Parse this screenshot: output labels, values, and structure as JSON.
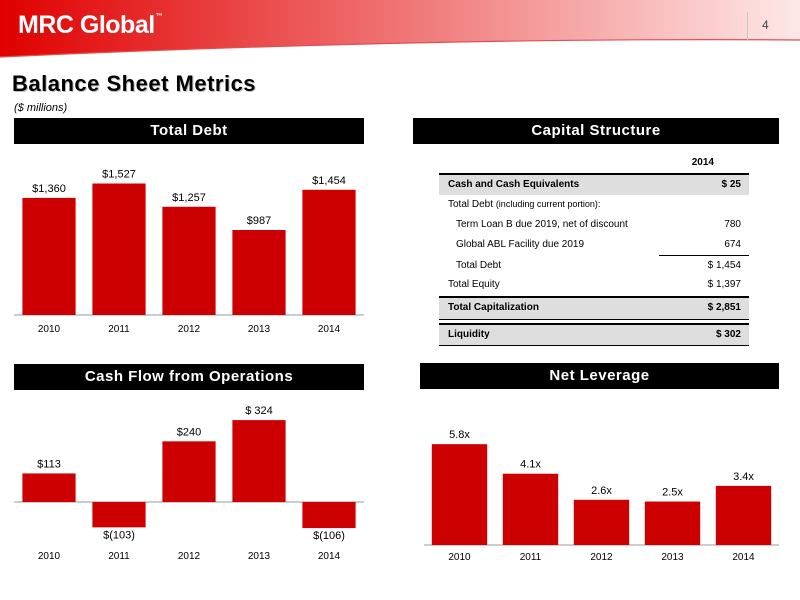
{
  "header": {
    "logo_text": "MRC Global",
    "logo_mark": "™",
    "page_number": "4",
    "brand_color": "#cc0000"
  },
  "page_title": "Balance Sheet Metrics",
  "units": "($ millions)",
  "sections": {
    "total_debt": "Total Debt",
    "capital_structure": "Capital Structure",
    "cash_flow": "Cash Flow from Operations",
    "net_leverage": "Net Leverage"
  },
  "capital_structure": {
    "year_header": "2014",
    "cash": {
      "label": "Cash and Cash Equivalents",
      "value": "$ 25"
    },
    "total_debt_heading": {
      "label": "Total Debt",
      "note": "(including current portion):"
    },
    "term_loan": {
      "label": "Term Loan B due 2019, net of discount",
      "value": "780"
    },
    "abl": {
      "label": "Global ABL Facility due 2019",
      "value": "674"
    },
    "total_debt": {
      "label": "Total Debt",
      "value": "$ 1,454"
    },
    "total_equity": {
      "label": "Total Equity",
      "value": "$ 1,397"
    },
    "total_capitalization": {
      "label": "Total Capitalization",
      "value": "$ 2,851"
    },
    "liquidity": {
      "label": "Liquidity",
      "value": "$ 302"
    }
  },
  "chart_data": [
    {
      "id": "total-debt",
      "type": "bar",
      "title": "Total Debt",
      "categories": [
        "2010",
        "2011",
        "2012",
        "2013",
        "2014"
      ],
      "values": [
        1360,
        1527,
        1257,
        987,
        1454
      ],
      "data_labels": [
        "$1,360",
        "$1,527",
        "$1,257",
        "$987",
        "$1,454"
      ],
      "ylim": [
        0,
        1800
      ],
      "color": "#cc0000",
      "grid": false
    },
    {
      "id": "cash-flow",
      "type": "bar",
      "title": "Cash Flow from Operations",
      "categories": [
        "2010",
        "2011",
        "2012",
        "2013",
        "2014"
      ],
      "values": [
        113,
        -103,
        240,
        324,
        -106
      ],
      "data_labels": [
        "$113",
        "$(103)",
        "$240",
        "$ 324",
        "$(106)"
      ],
      "ylim": [
        -130,
        360
      ],
      "color": "#cc0000",
      "grid": false
    },
    {
      "id": "net-leverage",
      "type": "bar",
      "title": "Net Leverage",
      "categories": [
        "2010",
        "2011",
        "2012",
        "2013",
        "2014"
      ],
      "values": [
        5.8,
        4.1,
        2.6,
        2.5,
        3.4
      ],
      "data_labels": [
        "5.8x",
        "4.1x",
        "2.6x",
        "2.5x",
        "3.4x"
      ],
      "ylim": [
        0,
        6.5
      ],
      "color": "#cc0000",
      "grid": false
    }
  ]
}
